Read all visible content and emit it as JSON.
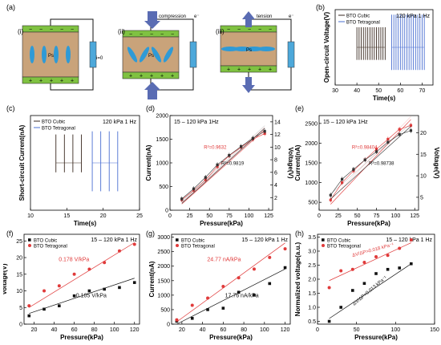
{
  "panel_letters": {
    "a": "(a)",
    "b": "(b)",
    "c": "(c)",
    "d": "(d)",
    "e": "(e)",
    "f": "(f)",
    "g": "(g)",
    "h": "(h)"
  },
  "schematic": {
    "states": [
      "(i)",
      "(ii)",
      "(iii)"
    ],
    "current_zero": "i=0",
    "compression": "compression",
    "tension": "tension",
    "electron": "e⁻",
    "pol_label": "Ps",
    "colors": {
      "electrode": "#7fc241",
      "matrix": "#c9a37a",
      "load": "#4da8da",
      "arrow": "#5a6cb3",
      "particle": "#2f9ad6"
    }
  },
  "chart_data": [
    {
      "id": "b",
      "type": "line",
      "title": "",
      "annotation": "120 kPa  1 Hz",
      "xlabel": "Time(s)",
      "ylabel": "Open-circuit Voltage(V)",
      "xticks": [
        "30",
        "40",
        "50",
        "60",
        "70"
      ],
      "xlim": [
        30,
        75
      ],
      "series": [
        {
          "name": "BTO Cubic",
          "color": "#3a2a20",
          "x_range": [
            40,
            53
          ],
          "peak_count": 14,
          "peak_pos": 8,
          "peak_neg": -5
        },
        {
          "name": "BTO Tetragonal",
          "color": "#4a6fd1",
          "x_range": [
            56,
            71
          ],
          "peak_count": 16,
          "peak_pos": 13,
          "peak_neg": -9
        }
      ],
      "legend": "top-left"
    },
    {
      "id": "c",
      "type": "line",
      "annotation": "120 kPa  1 Hz",
      "xlabel": "Time(s)",
      "ylabel": "Short-circuit Current(nA)",
      "xticks": [
        "10",
        "15",
        "20",
        "25"
      ],
      "xlim": [
        10,
        25
      ],
      "series": [
        {
          "name": "BTO Cubic",
          "color": "#3a2a20",
          "x_range": [
            13.5,
            17
          ],
          "peak_count": 4,
          "peak_pos": 9,
          "peak_neg": -3
        },
        {
          "name": "BTO Tetragonal",
          "color": "#4a6fd1",
          "x_range": [
            18.5,
            22
          ],
          "peak_count": 4,
          "peak_pos": 10,
          "peak_neg": -9
        }
      ],
      "legend": "top-left"
    },
    {
      "id": "d",
      "type": "scatter",
      "annotation": "15 – 120 kPa 1Hz",
      "xlabel": "Pressure(kPa)",
      "ylabel": "Current(nA)",
      "y2label": "Voltage(V)",
      "xticks": [
        "0",
        "25",
        "50",
        "75",
        "100",
        "125"
      ],
      "xlim": [
        0,
        130
      ],
      "yticks": [
        "0",
        "500",
        "1000",
        "1500",
        "2000"
      ],
      "ylim": [
        0,
        2000
      ],
      "y2ticks": [
        "2",
        "4",
        "6",
        "8",
        "10",
        "12",
        "14"
      ],
      "y2lim": [
        0,
        15
      ],
      "x": [
        15,
        30,
        45,
        60,
        75,
        90,
        105,
        120
      ],
      "series": [
        {
          "name": "Current",
          "axis": "left",
          "color": "#e03a3a",
          "values": [
            220,
            420,
            640,
            920,
            1150,
            1330,
            1500,
            1620
          ],
          "fit": [
            130,
            1700
          ],
          "r2_label": "R²=0.9632"
        },
        {
          "name": "Voltage",
          "axis": "right",
          "color": "#333333",
          "values": [
            1.8,
            3.4,
            5.2,
            7.2,
            8.7,
            10.1,
            11.4,
            12.5
          ],
          "fit": [
            1.1,
            13.0
          ],
          "r2_label": "R²=0.9819"
        }
      ]
    },
    {
      "id": "e",
      "type": "scatter",
      "annotation": "15 – 120 kPa 1Hz",
      "xlabel": "Pressure(kPa)",
      "ylabel": "Current(nA)",
      "y2label": "Voltage(V)",
      "xticks": [
        "0",
        "25",
        "50",
        "75",
        "100",
        "125"
      ],
      "xlim": [
        0,
        130
      ],
      "yticks": [
        "500",
        "1000",
        "1500",
        "2000",
        "2500"
      ],
      "ylim": [
        300,
        2700
      ],
      "y2ticks": [
        "5",
        "10",
        "15",
        "20"
      ],
      "y2lim": [
        2,
        24
      ],
      "x": [
        15,
        30,
        45,
        60,
        75,
        90,
        105,
        120
      ],
      "series": [
        {
          "name": "Current",
          "axis": "left",
          "color": "#e03a3a",
          "values": [
            560,
            1000,
            1300,
            1580,
            1850,
            2100,
            2350,
            2450
          ],
          "fit": [
            450,
            2600
          ],
          "r2_label": "R²=0.98404"
        },
        {
          "name": "Voltage",
          "axis": "right",
          "color": "#333333",
          "values": [
            5.5,
            9.2,
            11.5,
            13.7,
            15.6,
            17.8,
            19.6,
            20.5
          ],
          "fit": [
            4.6,
            21.5
          ],
          "r2_label": "R²=0.98738"
        }
      ]
    },
    {
      "id": "f",
      "type": "scatter",
      "annotation": "15 – 120 kPa 1 Hz",
      "xlabel": "Pressure(kPa)",
      "ylabel": "Voltage(V)",
      "xticks": [
        "20",
        "40",
        "60",
        "80",
        "100",
        "120"
      ],
      "xlim": [
        10,
        125
      ],
      "yticks": [
        "0",
        "5",
        "10",
        "15",
        "20",
        "25"
      ],
      "ylim": [
        0,
        27
      ],
      "x": [
        15,
        30,
        45,
        60,
        75,
        90,
        105,
        120
      ],
      "series": [
        {
          "name": "BTO Cubic",
          "color": "#111111",
          "values": [
            2.5,
            4.5,
            5.5,
            8.5,
            10.0,
            10.5,
            11.0,
            12.5
          ],
          "fit": [
            3.2,
            13.8
          ],
          "slope_label": "0.105 V/kPa"
        },
        {
          "name": "BTO Tetragonal",
          "color": "#e03a3a",
          "values": [
            5.5,
            10.0,
            11.5,
            15.0,
            16.5,
            18.5,
            22.0,
            24.0
          ],
          "fit": [
            5.0,
            24.5
          ],
          "slope_label": "0.178 V/kPa"
        }
      ],
      "legend": "top-left"
    },
    {
      "id": "g",
      "type": "scatter",
      "annotation": "15 – 120 kPa 1 Hz",
      "xlabel": "Pressure(kPa)",
      "ylabel": "Current(nA)",
      "xticks": [
        "20",
        "40",
        "60",
        "80",
        "100",
        "120"
      ],
      "xlim": [
        10,
        125
      ],
      "yticks": [
        "0",
        "500",
        "1000",
        "1500",
        "2000",
        "2500",
        "3000"
      ],
      "ylim": [
        0,
        3100
      ],
      "x": [
        15,
        30,
        45,
        60,
        75,
        90,
        105,
        120
      ],
      "series": [
        {
          "name": "BTO Cubic",
          "color": "#111111",
          "values": [
            100,
            200,
            500,
            550,
            1100,
            1000,
            1400,
            1950
          ],
          "fit": [
            0,
            1900
          ],
          "slope_label": "17.76 nA/kPa"
        },
        {
          "name": "BTO Tetragonal",
          "color": "#e03a3a",
          "values": [
            150,
            650,
            900,
            1300,
            1600,
            1900,
            2300,
            2600
          ],
          "fit": [
            80,
            2800
          ],
          "slope_label": "24.77 nA/kPa"
        }
      ],
      "legend": "top-left"
    },
    {
      "id": "h",
      "type": "scatter",
      "annotation": "15 – 120 kPa 1 Hz",
      "xlabel": "Pressure(kPa)",
      "ylabel": "Normalized voltage(a.u.)",
      "xticks": [
        "0",
        "50",
        "100",
        "150"
      ],
      "xlim": [
        0,
        150
      ],
      "yticks": [
        "0.5",
        "1.0",
        "1.5",
        "2.0",
        "2.5",
        "3.0",
        "3.5"
      ],
      "ylim": [
        0.4,
        3.6
      ],
      "x": [
        15,
        30,
        45,
        60,
        75,
        90,
        105,
        120
      ],
      "series": [
        {
          "name": "BTO Cubic",
          "color": "#111111",
          "values": [
            0.5,
            1.0,
            1.6,
            1.85,
            2.2,
            2.35,
            2.4,
            2.55
          ],
          "fit": [
            0.6,
            2.55
          ],
          "slope_label": "ΔV/ΔP=0.013 kPa⁻¹"
        },
        {
          "name": "BTO Tetragonal",
          "color": "#e03a3a",
          "values": [
            1.7,
            2.3,
            2.35,
            2.6,
            2.8,
            2.85,
            3.1,
            3.4
          ],
          "fit": [
            1.95,
            3.3
          ],
          "slope_label": "ΔV/ΔP=0.018 kPa⁻¹"
        }
      ],
      "legend": "top-left"
    }
  ]
}
